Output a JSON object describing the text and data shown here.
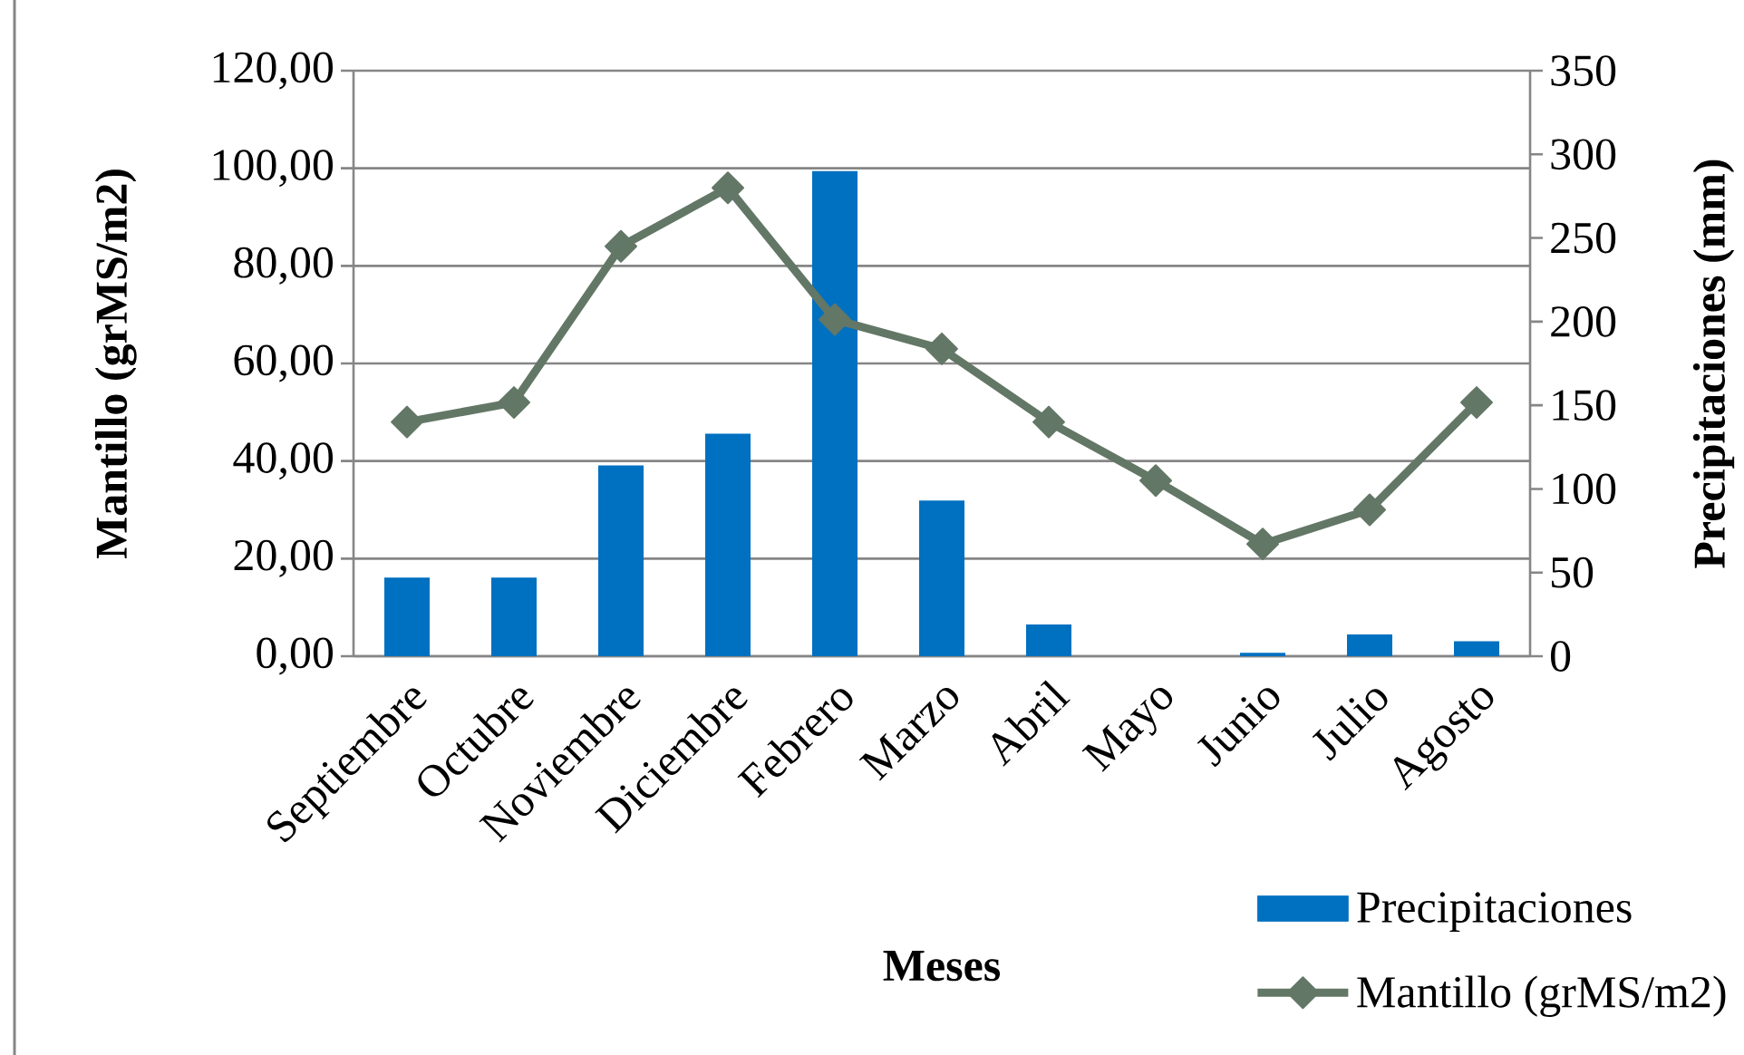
{
  "chart_data": {
    "type": "bar",
    "xlabel": "Meses",
    "ylabel": "Mantillo (grMS/m2)",
    "y2label": "Precipitaciones (mm)",
    "categories": [
      "Septiembre",
      "Octubre",
      "Noviembre",
      "Diciembre",
      "Febrero",
      "Marzo",
      "Abril",
      "Mayo",
      "Junio",
      "Julio",
      "Agosto"
    ],
    "series": [
      {
        "name": "Precipitaciones",
        "axis": "y2",
        "color": "#0070c0",
        "values": [
          47,
          47,
          114,
          133,
          290,
          93,
          19,
          0,
          2,
          13,
          9
        ]
      },
      {
        "name": "Mantillo (grMS/m2)",
        "type": "line",
        "color": "#637766",
        "marker": "diamond",
        "values": [
          48,
          52,
          84,
          96,
          69,
          63,
          48,
          36,
          23,
          30,
          52
        ]
      }
    ],
    "ylim": [
      0,
      120
    ],
    "yticks": [
      {
        "value": 0,
        "label": "0,00"
      },
      {
        "value": 20,
        "label": "20,00"
      },
      {
        "value": 40,
        "label": "40,00"
      },
      {
        "value": 60,
        "label": "60,00"
      },
      {
        "value": 80,
        "label": "80,00"
      },
      {
        "value": 100,
        "label": "100,00"
      },
      {
        "value": 120,
        "label": "120,00"
      }
    ],
    "y2lim": [
      0,
      350
    ],
    "y2ticks": [
      0,
      50,
      100,
      150,
      200,
      250,
      300,
      350
    ],
    "grid": "y",
    "legend": "bottom right"
  }
}
